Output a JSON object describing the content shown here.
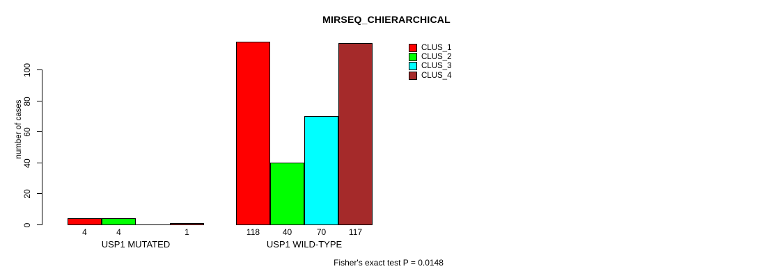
{
  "chart_data": {
    "type": "bar",
    "title": "MIRSEQ_CHIERARCHICAL",
    "ylabel": "number of cases",
    "footer": "Fisher's exact test P = 0.0148",
    "categories": [
      "USP1 MUTATED",
      "USP1 WILD-TYPE"
    ],
    "series": [
      {
        "name": "CLUS_1",
        "color": "#ff0000",
        "values": [
          4,
          118
        ]
      },
      {
        "name": "CLUS_2",
        "color": "#00ff00",
        "values": [
          4,
          40
        ]
      },
      {
        "name": "CLUS_3",
        "color": "#00ffff",
        "values": [
          0,
          70
        ]
      },
      {
        "name": "CLUS_4",
        "color": "#a52a2a",
        "values": [
          1,
          117
        ]
      }
    ],
    "bar_value_labels": [
      [
        "4",
        "4",
        "",
        "1"
      ],
      [
        "118",
        "40",
        "70",
        "117"
      ]
    ],
    "yticks": [
      0,
      20,
      40,
      60,
      80,
      100
    ],
    "ylim": [
      0,
      122
    ],
    "grid": false,
    "legend": {
      "position": "top-right",
      "entries": [
        "CLUS_1",
        "CLUS_2",
        "CLUS_3",
        "CLUS_4"
      ]
    },
    "colors": {
      "background": "#ffffff",
      "axis": "#000000",
      "text": "#000000"
    }
  }
}
